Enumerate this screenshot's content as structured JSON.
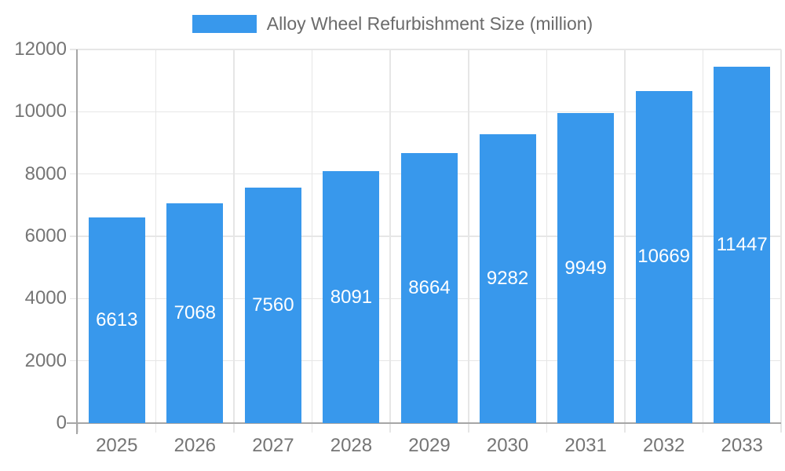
{
  "legend": {
    "title": "Alloy Wheel Refurbishment Size (million)"
  },
  "chart_data": {
    "type": "bar",
    "title": "Alloy Wheel Refurbishment Size (million)",
    "categories": [
      "2025",
      "2026",
      "2027",
      "2028",
      "2029",
      "2030",
      "2031",
      "2032",
      "2033"
    ],
    "values": [
      6613,
      7068,
      7560,
      8091,
      8664,
      9282,
      9949,
      10669,
      11447
    ],
    "xlabel": "",
    "ylabel": "",
    "ylim": [
      0,
      12000
    ],
    "ytick_step": 2000,
    "ytick_labels": [
      "0",
      "2000",
      "4000",
      "6000",
      "8000",
      "10000",
      "12000"
    ],
    "legend_position": "top",
    "grid": true,
    "bar_labels_inside": true,
    "colors": {
      "bar": "#3898ec",
      "grid": "#e6e6e6",
      "axis_line": "#a6a6a6",
      "axis_text": "#757575",
      "title_text": "#6b6b6b",
      "bar_label_text": "#ffffff",
      "background": "#ffffff"
    }
  }
}
